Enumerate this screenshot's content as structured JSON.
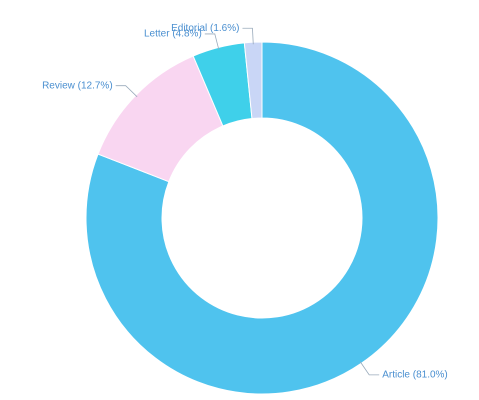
{
  "chart_data": {
    "type": "donut",
    "values": [
      81.0,
      12.7,
      4.8,
      1.6
    ],
    "value_labels": [
      "Article (81.0%)",
      "Review (12.7%)",
      "Letter (4.8%)",
      "Editorial (1.6%)"
    ],
    "colors": [
      "#4fc3ee",
      "#f9d6f1",
      "#3fd0ea",
      "#c9d6f6"
    ]
  }
}
